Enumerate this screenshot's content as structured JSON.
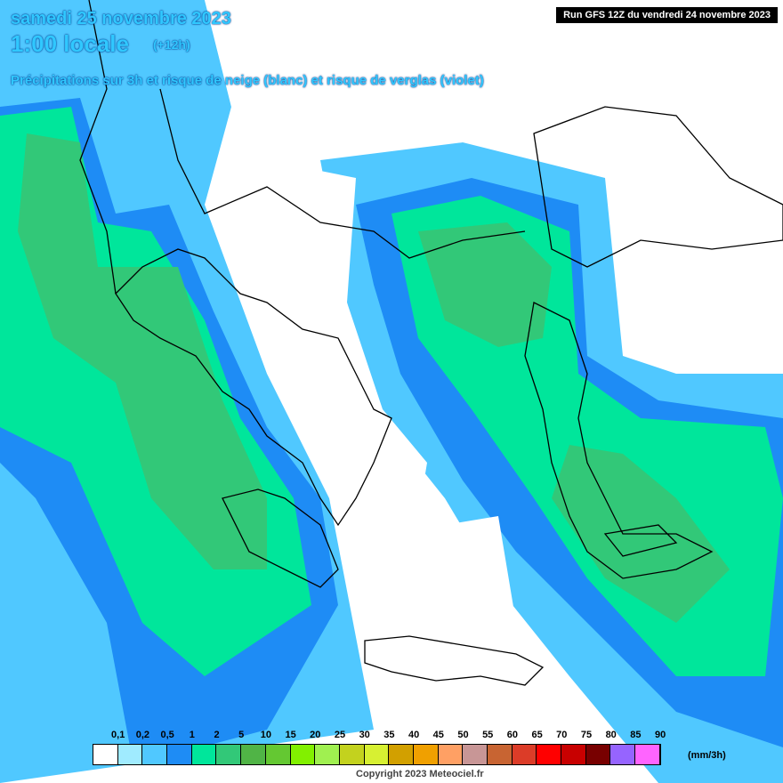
{
  "header": {
    "date": "samedi 25 novembre 2023",
    "time": "1:00 locale",
    "offset": "(+12h)",
    "subtitle": "Précipitations sur 3h et risque de neige (blanc) et risque de verglas (violet)",
    "run": "Run GFS 12Z du vendredi 24 novembre 2023"
  },
  "legend": {
    "labels": [
      "0,1",
      "0,2",
      "0,5",
      "1",
      "2",
      "5",
      "10",
      "15",
      "20",
      "25",
      "30",
      "35",
      "40",
      "45",
      "50",
      "55",
      "60",
      "65",
      "70",
      "75",
      "80",
      "85",
      "90"
    ],
    "colors": [
      "#ffffff",
      "#a0ebff",
      "#50c8ff",
      "#1e8cf5",
      "#00e69b",
      "#32c878",
      "#50b446",
      "#64c832",
      "#82f000",
      "#a0f050",
      "#c3d21e",
      "#d7f032",
      "#d2a000",
      "#f0a000",
      "#ffa064",
      "#c89696",
      "#c86432",
      "#dc3c28",
      "#ff0000",
      "#c80000",
      "#780000",
      "#9664ff",
      "#ff64ff"
    ],
    "unit": "(mm/3h)"
  },
  "footer": {
    "copyright": "Copyright 2023 Meteociel.fr"
  }
}
